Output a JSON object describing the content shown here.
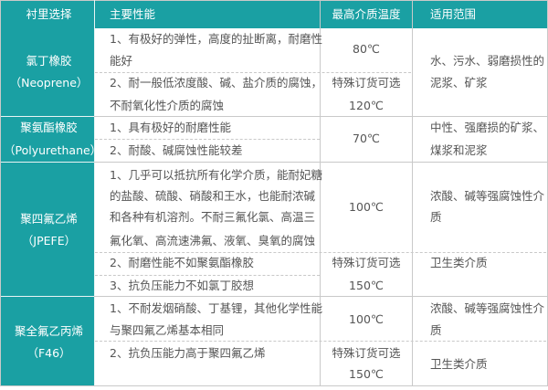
{
  "colors": {
    "header_bg": "#1aa0a3",
    "lining_col_bg": "#1aa0a3",
    "grid": "#c9c9c9",
    "text": "#555555"
  },
  "header": [
    "衬里选择",
    "主要性能",
    "最高介质温度",
    "适用范围"
  ],
  "rows": [
    {
      "lining": [
        "氯丁橡胶",
        "（Neoprene）"
      ],
      "properties": [
        "1、有极好的弹性，高度的扯断离，耐磨性",
        "能好",
        "2、耐一般低浓度酸、碱、盐介质的腐蚀，",
        "不耐氧化性介质的腐蚀"
      ],
      "temp": [
        "80℃",
        "特殊订货可选",
        "120℃"
      ],
      "scope": [
        "水、污水、弱磨损性的",
        "泥浆、矿浆"
      ]
    },
    {
      "lining": [
        "聚氨酯橡胶",
        "（Polyurethane）"
      ],
      "properties": [
        "1、具有极好的耐磨性能",
        "2、耐酸、碱腐蚀性能较差"
      ],
      "temp": [
        "70℃"
      ],
      "scope": [
        "中性、强磨损的矿浆、",
        "煤浆和泥浆"
      ]
    },
    {
      "lining": [
        "聚四氟乙烯",
        "（JPEFE）"
      ],
      "properties": [
        "1、几乎可以抵抗所有化学介质，能耐妃糖",
        "的盐酸、硫酸、硝酸和王水，也能耐浓碱",
        "和各种有机溶剂。不耐三氟化氯、高温三",
        "氟化氧、高流速沸氟、液氧、臭氧的腐蚀",
        "2、耐磨性能不如聚氨酯橡胶",
        "3、抗负压能力不如氯丁胶想"
      ],
      "temp": [
        "100℃",
        "特殊订货可选",
        "150℃"
      ],
      "scope": [
        "浓酸、碱等强腐蚀性介",
        "质",
        "卫生类介质"
      ]
    },
    {
      "lining": [
        "聚全氟乙丙烯",
        "（F46）"
      ],
      "properties": [
        "1、不耐发烟硝酸、丁基锂，其他化学性能",
        "与聚四氟乙烯基本相同",
        "2、抗负压能力高于聚四氟乙烯"
      ],
      "temp": [
        "100℃",
        "特殊订货可选",
        "150℃"
      ],
      "scope": [
        "浓酸、碱等强腐蚀性介",
        "质",
        "卫生类介质"
      ]
    }
  ]
}
